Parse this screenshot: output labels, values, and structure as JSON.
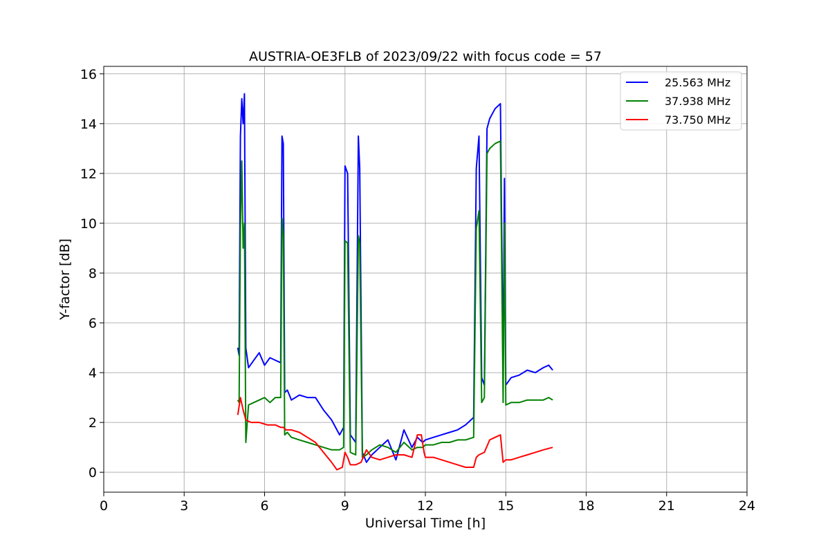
{
  "chart_data": {
    "type": "line",
    "title": "AUSTRIA-OE3FLB of 2023/09/22 with focus code = 57",
    "xlabel": "Universal Time [h]",
    "ylabel": "Y-factor [dB]",
    "xlim": [
      0,
      24
    ],
    "ylim": [
      -0.8,
      16.3
    ],
    "xticks": [
      0,
      3,
      6,
      9,
      12,
      15,
      18,
      21,
      24
    ],
    "yticks": [
      0,
      2,
      4,
      6,
      8,
      10,
      12,
      14,
      16
    ],
    "grid": true,
    "legend_position": "top-right",
    "series": [
      {
        "name": "25.563 MHz",
        "color": "#0000ff",
        "x": [
          5.0,
          5.05,
          5.1,
          5.15,
          5.2,
          5.25,
          5.3,
          5.4,
          5.6,
          5.8,
          6.0,
          6.2,
          6.4,
          6.6,
          6.65,
          6.7,
          6.75,
          6.85,
          7.0,
          7.3,
          7.6,
          7.9,
          8.2,
          8.5,
          8.8,
          8.95,
          9.0,
          9.1,
          9.2,
          9.4,
          9.5,
          9.55,
          9.65,
          9.8,
          10.0,
          10.3,
          10.6,
          10.9,
          11.2,
          11.5,
          11.7,
          11.9,
          12.0,
          12.3,
          12.6,
          12.9,
          13.2,
          13.5,
          13.8,
          13.9,
          14.0,
          14.1,
          14.2,
          14.3,
          14.4,
          14.6,
          14.8,
          14.9,
          14.95,
          15.0,
          15.2,
          15.5,
          15.8,
          16.1,
          16.4,
          16.6,
          16.75
        ],
        "y": [
          5.0,
          4.7,
          13.5,
          15.0,
          14.0,
          15.2,
          5.0,
          4.2,
          4.5,
          4.8,
          4.3,
          4.6,
          4.5,
          4.4,
          13.5,
          13.2,
          3.2,
          3.3,
          2.9,
          3.1,
          3.0,
          3.0,
          2.5,
          2.1,
          1.5,
          1.8,
          12.3,
          12.0,
          1.5,
          1.2,
          13.5,
          12.2,
          0.8,
          0.4,
          0.7,
          1.0,
          1.3,
          0.5,
          1.7,
          1.0,
          1.4,
          1.2,
          1.3,
          1.4,
          1.5,
          1.6,
          1.7,
          1.9,
          2.2,
          12.2,
          13.5,
          3.8,
          3.5,
          13.8,
          14.2,
          14.6,
          14.8,
          4.0,
          11.8,
          3.5,
          3.8,
          3.9,
          4.1,
          4.0,
          4.2,
          4.3,
          4.1
        ]
      },
      {
        "name": "37.938 MHz",
        "color": "#008000",
        "x": [
          5.0,
          5.05,
          5.1,
          5.15,
          5.2,
          5.25,
          5.3,
          5.4,
          5.6,
          5.8,
          6.0,
          6.2,
          6.4,
          6.6,
          6.65,
          6.7,
          6.75,
          6.85,
          7.0,
          7.3,
          7.6,
          7.9,
          8.2,
          8.5,
          8.8,
          8.95,
          9.0,
          9.1,
          9.2,
          9.4,
          9.5,
          9.55,
          9.65,
          9.8,
          10.0,
          10.3,
          10.6,
          10.9,
          11.2,
          11.5,
          11.7,
          11.9,
          12.0,
          12.3,
          12.6,
          12.9,
          13.2,
          13.5,
          13.8,
          13.9,
          14.0,
          14.1,
          14.2,
          14.3,
          14.4,
          14.6,
          14.8,
          14.9,
          14.95,
          15.0,
          15.2,
          15.5,
          15.8,
          16.1,
          16.4,
          16.6,
          16.75
        ],
        "y": [
          2.9,
          2.8,
          9.8,
          12.5,
          9.0,
          10.0,
          1.2,
          2.7,
          2.8,
          2.9,
          3.0,
          2.8,
          3.0,
          3.0,
          10.2,
          9.5,
          1.5,
          1.6,
          1.4,
          1.3,
          1.2,
          1.1,
          1.0,
          0.9,
          0.9,
          1.0,
          9.3,
          9.2,
          0.8,
          0.7,
          9.5,
          9.2,
          0.6,
          0.7,
          0.9,
          1.1,
          1.0,
          0.8,
          1.2,
          0.9,
          1.0,
          1.0,
          1.1,
          1.1,
          1.2,
          1.2,
          1.3,
          1.3,
          1.4,
          9.8,
          10.5,
          2.8,
          3.0,
          12.8,
          13.0,
          13.2,
          13.3,
          2.8,
          10.0,
          2.7,
          2.8,
          2.8,
          2.9,
          2.9,
          2.9,
          3.0,
          2.9
        ]
      },
      {
        "name": "73.750 MHz",
        "color": "#ff0000",
        "x": [
          5.0,
          5.1,
          5.2,
          5.3,
          5.5,
          5.8,
          6.1,
          6.4,
          6.6,
          6.7,
          6.8,
          7.0,
          7.3,
          7.6,
          7.9,
          8.2,
          8.5,
          8.7,
          8.9,
          9.0,
          9.1,
          9.2,
          9.4,
          9.6,
          9.8,
          10.0,
          10.3,
          10.6,
          10.9,
          11.2,
          11.5,
          11.7,
          11.85,
          11.95,
          12.0,
          12.3,
          12.6,
          12.9,
          13.2,
          13.5,
          13.8,
          13.9,
          14.0,
          14.2,
          14.4,
          14.6,
          14.8,
          14.9,
          15.0,
          15.2,
          15.5,
          15.8,
          16.1,
          16.4,
          16.75
        ],
        "y": [
          2.3,
          3.0,
          2.5,
          2.1,
          2.0,
          2.0,
          1.9,
          1.9,
          1.8,
          1.8,
          1.7,
          1.7,
          1.6,
          1.4,
          1.2,
          0.8,
          0.4,
          0.1,
          0.2,
          0.8,
          0.6,
          0.3,
          0.3,
          0.4,
          0.9,
          0.6,
          0.5,
          0.6,
          0.7,
          0.7,
          0.6,
          1.5,
          1.5,
          0.8,
          0.6,
          0.6,
          0.5,
          0.4,
          0.3,
          0.2,
          0.2,
          0.6,
          0.7,
          0.8,
          1.3,
          1.4,
          1.5,
          0.4,
          0.5,
          0.5,
          0.6,
          0.7,
          0.8,
          0.9,
          1.0
        ]
      }
    ]
  }
}
